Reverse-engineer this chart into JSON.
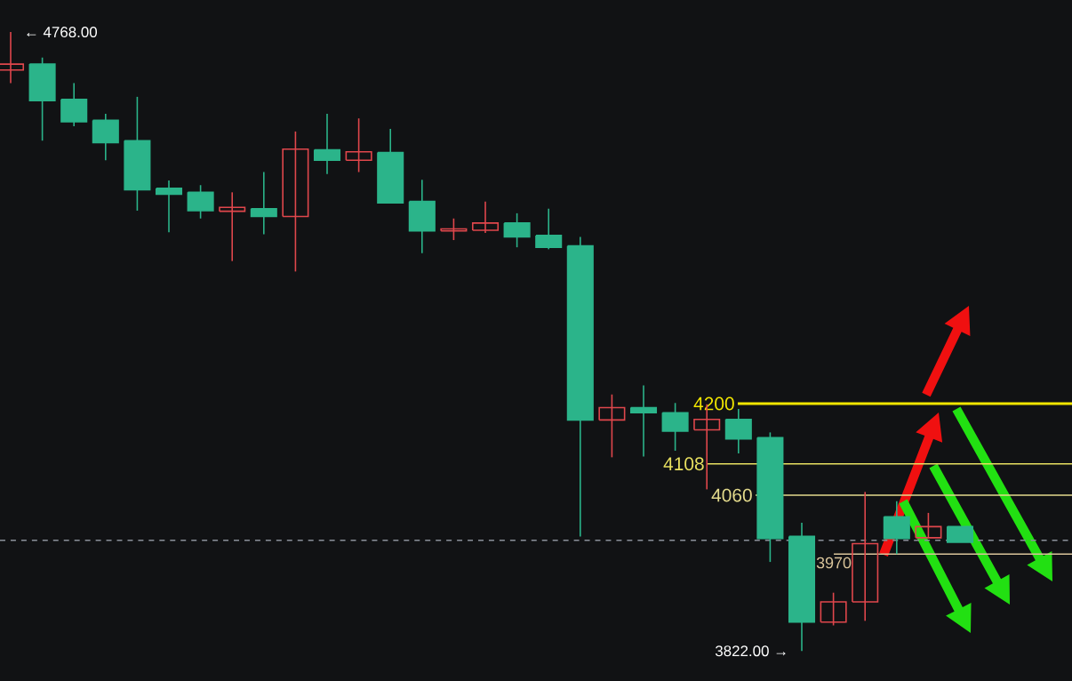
{
  "chart_data": {
    "type": "candlestick",
    "categories": [
      null,
      null,
      null,
      null,
      null,
      null,
      null,
      null,
      null,
      null,
      null,
      null,
      null,
      null,
      null,
      null,
      null,
      null,
      null,
      null,
      null,
      null,
      null,
      null,
      null,
      null,
      null,
      null,
      null,
      null,
      null
    ],
    "ohlc": [
      [
        4710,
        4768,
        4690,
        4719
      ],
      [
        4719,
        4729,
        4602,
        4663
      ],
      [
        4665,
        4690,
        4624,
        4631
      ],
      [
        4633,
        4643,
        4572,
        4599
      ],
      [
        4602,
        4669,
        4495,
        4527
      ],
      [
        4529,
        4541,
        4462,
        4520
      ],
      [
        4523,
        4534,
        4483,
        4495
      ],
      [
        4494,
        4523,
        4418,
        4500
      ],
      [
        4498,
        4554,
        4459,
        4486
      ],
      [
        4486,
        4616,
        4402,
        4589
      ],
      [
        4588,
        4643,
        4551,
        4572
      ],
      [
        4572,
        4636,
        4554,
        4585
      ],
      [
        4584,
        4620,
        4506,
        4507
      ],
      [
        4509,
        4542,
        4430,
        4464
      ],
      [
        4464,
        4483,
        4450,
        4467
      ],
      [
        4465,
        4509,
        4461,
        4476
      ],
      [
        4476,
        4491,
        4439,
        4455
      ],
      [
        4457,
        4498,
        4436,
        4439
      ],
      [
        4441,
        4455,
        3997,
        4175
      ],
      [
        4175,
        4214,
        4118,
        4194
      ],
      [
        4194,
        4228,
        4119,
        4186
      ],
      [
        4186,
        4201,
        4128,
        4158
      ],
      [
        4160,
        4199,
        4069,
        4176
      ],
      [
        4176,
        4192,
        4124,
        4146
      ],
      [
        4148,
        4156,
        3958,
        3994
      ],
      [
        3997,
        4018,
        3822,
        3866
      ],
      [
        3866,
        3911,
        3861,
        3897
      ],
      [
        3897,
        4065,
        3868,
        3986
      ],
      [
        4027,
        4051,
        3970,
        3994
      ],
      [
        3995,
        4033,
        3994,
        4012
      ],
      [
        4012,
        4012,
        3988,
        3988
      ]
    ],
    "colors": [
      "#e0474c",
      "#2bb48a",
      "#2bb48a",
      "#2bb48a",
      "#2bb48a",
      "#2bb48a",
      "#2bb48a",
      "#e0474c",
      "#2bb48a",
      "#e0474c",
      "#2bb48a",
      "#e0474c",
      "#2bb48a",
      "#2bb48a",
      "#e0474c",
      "#e0474c",
      "#2bb48a",
      "#2bb48a",
      "#2bb48a",
      "#e0474c",
      "#2bb48a",
      "#2bb48a",
      "#e0474c",
      "#2bb48a",
      "#2bb48a",
      "#2bb48a",
      "#e0474c",
      "#e0474c",
      "#2bb48a",
      "#e0474c",
      "#2bb48a"
    ],
    "ref_lines": [
      {
        "axis": "y",
        "value": 4200,
        "label": "4200",
        "color": "#f2e600",
        "line_style": "solid"
      },
      {
        "axis": "y",
        "value": 4108,
        "label": "4108",
        "color": "#e8e060",
        "line_style": "solid"
      },
      {
        "axis": "y",
        "value": 4060,
        "label": "4060",
        "color": "#e3da8c",
        "line_style": "solid"
      },
      {
        "axis": "y",
        "value": 3970,
        "label": "3970",
        "color": "#d9c49a",
        "line_style": "solid"
      },
      {
        "axis": "y",
        "value": 3991,
        "color": "#8a9099",
        "line_style": "dashed"
      }
    ],
    "annotations": [
      "← 4768.00",
      "3822.00 →"
    ]
  }
}
